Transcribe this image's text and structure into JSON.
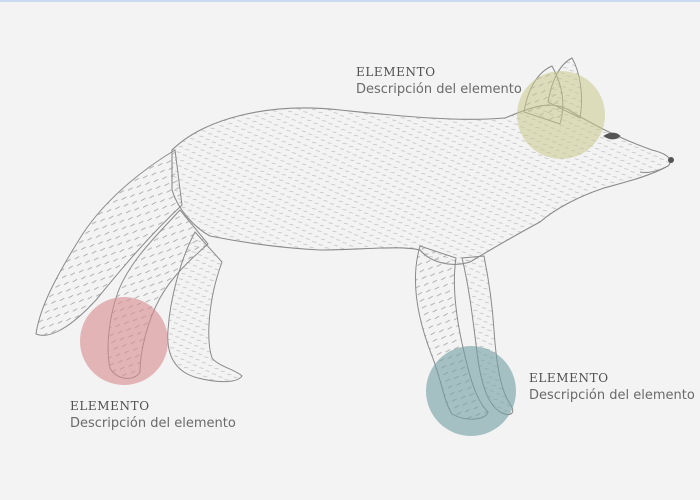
{
  "annotations": [
    {
      "id": "head",
      "title": "ELEMENTO",
      "description": "Descripción del elemento",
      "color": "#c9c98a"
    },
    {
      "id": "hind-paw",
      "title": "ELEMENTO",
      "description": "Descripción del elemento",
      "color": "#d98a8e"
    },
    {
      "id": "front-paw",
      "title": "ELEMENTO",
      "description": "Descripción del elemento",
      "color": "#6f9ea3"
    }
  ],
  "colors": {
    "background": "#f3f3f3",
    "sketch": "#8a8a8a"
  }
}
